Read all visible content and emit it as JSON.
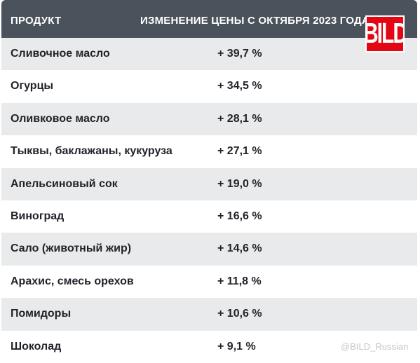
{
  "header": {
    "product": "ПРОДУКТ",
    "change": "ИЗМЕНЕНИЕ ЦЕНЫ С ОКТЯБРЯ 2023 ГОДА"
  },
  "logo": {
    "text": "BILD",
    "color": "#e30613"
  },
  "rows": [
    {
      "name": "Сливочное масло",
      "value": "+ 39,7 %"
    },
    {
      "name": "Огурцы",
      "value": "+ 34,5 %"
    },
    {
      "name": "Оливковое масло",
      "value": "+ 28,1 %"
    },
    {
      "name": "Тыквы, баклажаны, кукуруза",
      "value": "+ 27,1 %"
    },
    {
      "name": "Апельсиновый сок",
      "value": "+ 19,0 %"
    },
    {
      "name": "Виноград",
      "value": "+ 16,6 %"
    },
    {
      "name": "Сало (животный жир)",
      "value": "+ 14,6 %"
    },
    {
      "name": "Арахис, смесь орехов",
      "value": "+ 11,8 %"
    },
    {
      "name": "Помидоры",
      "value": "+ 10,6 %"
    },
    {
      "name": "Шоколад",
      "value": "+ 9,1 %"
    }
  ],
  "watermark": "@BILD_Russian"
}
